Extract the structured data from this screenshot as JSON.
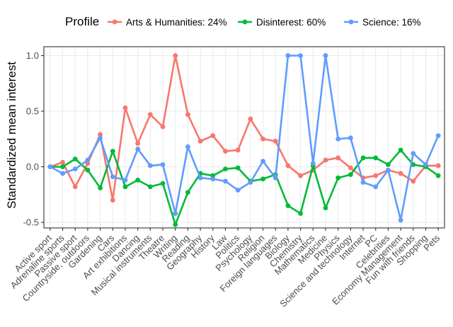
{
  "chart_data": {
    "type": "line",
    "title": "",
    "xlabel": "",
    "ylabel": "Standardized mean interest",
    "ylim": [
      -0.55,
      1.08
    ],
    "yticks": [
      -0.5,
      0.0,
      0.5,
      1.0
    ],
    "ytick_labels": [
      "-0.5",
      "0.0",
      "0.5",
      "1.0"
    ],
    "grid": true,
    "legend": {
      "title": "Profile",
      "placement": "top"
    },
    "categories": [
      "Active sport",
      "Adrenaline sports",
      "Passive sport",
      "Countryside, outdoors",
      "Gardening",
      "Cars",
      "Art exhibitions",
      "Dancing",
      "Musical instruments",
      "Theatre",
      "Writing",
      "Reading",
      "Geography",
      "History",
      "Law",
      "Politics",
      "Psychology",
      "Religion",
      "Foreign languages",
      "Biology",
      "Chemistry",
      "Mathematics",
      "Medicine",
      "Physics",
      "Science and technology",
      "Internet",
      "PC",
      "Celebrities",
      "Economy Management",
      "Fun with friends",
      "Shopping",
      "Pets"
    ],
    "series": [
      {
        "name": "Arts & Humanities: 24%",
        "color": "#F8766D",
        "values": [
          0.0,
          0.04,
          -0.18,
          0.03,
          0.29,
          -0.3,
          0.53,
          0.21,
          0.47,
          0.36,
          1.0,
          0.47,
          0.23,
          0.28,
          0.14,
          0.15,
          0.43,
          0.25,
          0.23,
          0.01,
          -0.08,
          -0.03,
          0.06,
          0.08,
          -0.01,
          -0.1,
          -0.08,
          -0.03,
          -0.06,
          -0.13,
          0.01,
          0.01
        ]
      },
      {
        "name": "Disinterest: 60%",
        "color": "#00BA38",
        "values": [
          0.0,
          0.0,
          0.07,
          -0.03,
          -0.19,
          0.14,
          -0.18,
          -0.12,
          -0.18,
          -0.15,
          -0.52,
          -0.23,
          -0.06,
          -0.08,
          -0.02,
          -0.01,
          -0.13,
          -0.11,
          -0.07,
          -0.35,
          -0.42,
          0.01,
          -0.37,
          -0.1,
          -0.07,
          0.08,
          0.08,
          0.02,
          0.15,
          0.02,
          0.0,
          -0.08
        ]
      },
      {
        "name": "Science: 16%",
        "color": "#619CFF",
        "values": [
          0.0,
          -0.06,
          -0.02,
          0.06,
          0.26,
          -0.09,
          -0.12,
          0.16,
          0.01,
          0.02,
          -0.42,
          0.18,
          -0.1,
          -0.11,
          -0.13,
          -0.21,
          -0.14,
          0.05,
          -0.1,
          1.0,
          1.0,
          0.03,
          1.0,
          0.25,
          0.26,
          -0.14,
          -0.18,
          -0.03,
          -0.48,
          0.12,
          0.02,
          0.28
        ]
      }
    ]
  },
  "colors": {
    "panel_background": "#ffffff",
    "grid_major": "#ebebeb",
    "grid_minor": "#f5f5f5",
    "panel_border": "#333333",
    "axis_text": "#4d4d4d"
  }
}
